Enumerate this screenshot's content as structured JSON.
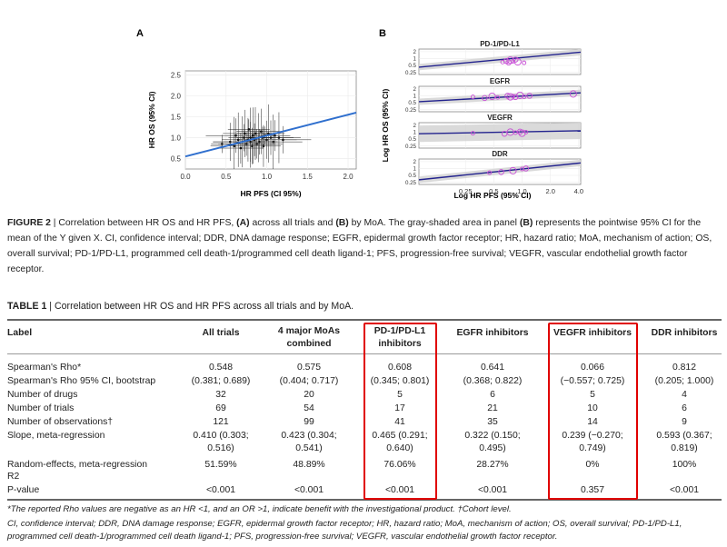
{
  "figure": {
    "panel_a": {
      "letter": "A",
      "x_label": "HR PFS (CI 95%)",
      "y_label": "HR OS (95% CI)",
      "x_ticks": [
        "0.0",
        "0.5",
        "1.0",
        "1.5",
        "2.0"
      ],
      "y_ticks": [
        "0.5",
        "1.0",
        "1.5",
        "2.0",
        "2.5"
      ]
    },
    "panel_b": {
      "letter": "B",
      "subpanels": [
        "PD-1/PD-L1",
        "EGFR",
        "VEGFR",
        "DDR"
      ],
      "y_ticks": [
        "2",
        "1",
        "0.5",
        "0.25"
      ],
      "x_ticks": [
        "0.25",
        "0.5",
        "1.0",
        "2.0",
        "4.0"
      ],
      "x_label": "Log HR PFS (95% CI)",
      "y_label": "Log HR OS (95% CI)"
    },
    "colors": {
      "line_a": "#2f6fce",
      "line_b": "#23238e",
      "points_b": "#c84fd6",
      "ci_band": "#d4d4d4"
    }
  },
  "chart_data": [
    {
      "type": "scatter",
      "title": "A",
      "xlabel": "HR PFS (CI 95%)",
      "ylabel": "HR OS (95% CI)",
      "xlim": [
        0.0,
        2.1
      ],
      "ylim": [
        0.25,
        2.6
      ],
      "error_bars": true,
      "points": [
        [
          0.45,
          0.85
        ],
        [
          0.55,
          0.9
        ],
        [
          0.6,
          0.8
        ],
        [
          0.62,
          1.05
        ],
        [
          0.65,
          0.95
        ],
        [
          0.68,
          0.75
        ],
        [
          0.7,
          0.9
        ],
        [
          0.72,
          1.0
        ],
        [
          0.73,
          1.1
        ],
        [
          0.75,
          0.85
        ],
        [
          0.77,
          0.95
        ],
        [
          0.78,
          1.2
        ],
        [
          0.8,
          0.9
        ],
        [
          0.8,
          1.0
        ],
        [
          0.82,
          0.8
        ],
        [
          0.83,
          1.05
        ],
        [
          0.85,
          0.95
        ],
        [
          0.86,
          1.1
        ],
        [
          0.88,
          0.85
        ],
        [
          0.9,
          1.0
        ],
        [
          0.91,
          0.9
        ],
        [
          0.93,
          1.15
        ],
        [
          0.95,
          1.0
        ],
        [
          0.96,
          0.8
        ],
        [
          0.98,
          1.05
        ],
        [
          1.0,
          0.95
        ],
        [
          1.02,
          1.1
        ],
        [
          1.05,
          1.0
        ],
        [
          1.08,
          0.9
        ],
        [
          1.1,
          1.05
        ],
        [
          1.15,
          1.0
        ],
        [
          1.2,
          0.95
        ]
      ],
      "fit_line": {
        "x": [
          0.0,
          2.1
        ],
        "y": [
          0.55,
          1.6
        ]
      }
    },
    {
      "type": "scatter",
      "title": "PD-1/PD-L1",
      "ylabel": "Log HR OS (95% CI)",
      "log_scale": true,
      "points": [
        [
          0.62,
          0.7
        ],
        [
          0.68,
          0.78
        ],
        [
          0.75,
          0.85
        ],
        [
          0.8,
          0.75
        ],
        [
          0.85,
          0.9
        ],
        [
          0.9,
          0.72
        ],
        [
          1.05,
          0.65
        ],
        [
          0.72,
          0.68
        ]
      ],
      "fit_line": {
        "x": [
          0.08,
          4.2
        ],
        "y": [
          0.42,
          1.9
        ]
      }
    },
    {
      "type": "scatter",
      "title": "EGFR",
      "log_scale": true,
      "points": [
        [
          0.3,
          0.9
        ],
        [
          0.4,
          0.8
        ],
        [
          0.48,
          0.95
        ],
        [
          0.55,
          0.85
        ],
        [
          0.7,
          1.0
        ],
        [
          0.75,
          0.9
        ],
        [
          0.8,
          0.95
        ],
        [
          0.85,
          0.88
        ],
        [
          0.95,
          1.05
        ],
        [
          1.05,
          0.9
        ],
        [
          1.2,
          1.0
        ],
        [
          3.5,
          1.2
        ]
      ],
      "fit_line": {
        "x": [
          0.08,
          4.2
        ],
        "y": [
          0.55,
          1.35
        ]
      }
    },
    {
      "type": "scatter",
      "title": "VEGFR",
      "log_scale": true,
      "points": [
        [
          0.3,
          0.9
        ],
        [
          0.65,
          0.85
        ],
        [
          0.75,
          1.0
        ],
        [
          0.85,
          0.95
        ],
        [
          0.95,
          1.05
        ],
        [
          1.0,
          0.9
        ],
        [
          1.1,
          1.0
        ]
      ],
      "fit_line": {
        "x": [
          0.08,
          4.2
        ],
        "y": [
          0.85,
          1.15
        ]
      }
    },
    {
      "type": "scatter",
      "title": "DDR",
      "xlabel": "Log HR PFS (95% CI)",
      "log_scale": true,
      "points": [
        [
          0.45,
          0.65
        ],
        [
          0.6,
          0.7
        ],
        [
          0.8,
          0.8
        ],
        [
          1.0,
          0.95
        ],
        [
          1.1,
          1.0
        ]
      ],
      "fit_line": {
        "x": [
          0.08,
          4.2
        ],
        "y": [
          0.32,
          1.75
        ]
      }
    }
  ],
  "caption": {
    "label": "FIGURE 2",
    "text_1": " | Correlation between HR OS and HR PFS, ",
    "a_bold": "(A)",
    "text_2": " across all trials and ",
    "b_bold": "(B)",
    "text_3": " by MoA. The gray-shaded area in panel ",
    "b_bold2": "(B)",
    "text_4": " represents the pointwise 95% CI for the mean of the Y given X. CI, confidence interval; DDR, DNA damage response; EGFR, epidermal growth factor receptor; HR, hazard ratio; MoA, mechanism of action; OS, overall survival; PD-1/PD-L1, programmed cell death-1/programmed cell death ligand-1; PFS, progression-free survival; VEGFR, vascular endothelial growth factor receptor."
  },
  "table": {
    "label": "TABLE 1",
    "title_text": " | Correlation between HR OS and HR PFS across all trials and by MoA.",
    "headers": [
      "Label",
      "All trials",
      "4 major MoAs combined",
      "PD-1/PD-L1 inhibitors",
      "EGFR inhibitors",
      "VEGFR inhibitors",
      "DDR inhibitors"
    ],
    "header_lines": {
      "moas_1": "4 major MoAs",
      "moas_2": "combined",
      "pd_1": "PD-1/PD-L1",
      "pd_2": "inhibitors"
    },
    "rows": [
      {
        "label": "Spearman's Rho*",
        "vals": [
          "0.548",
          "0.575",
          "0.608",
          "0.641",
          "0.066",
          "0.812"
        ]
      },
      {
        "label": "Spearman's Rho 95% CI, bootstrap",
        "vals": [
          "(0.381; 0.689)",
          "(0.404; 0.717)",
          "(0.345; 0.801)",
          "(0.368; 0.822)",
          "(−0.557; 0.725)",
          "(0.205; 1.000)"
        ]
      },
      {
        "label": "Number of drugs",
        "vals": [
          "32",
          "20",
          "5",
          "6",
          "5",
          "4"
        ]
      },
      {
        "label": "Number of trials",
        "vals": [
          "69",
          "54",
          "17",
          "21",
          "10",
          "6"
        ]
      },
      {
        "label": "Number of observations†",
        "vals": [
          "121",
          "99",
          "41",
          "35",
          "14",
          "9"
        ]
      },
      {
        "label": "Slope, meta-regression",
        "vals": [
          "0.410 (0.303;",
          "0.423 (0.304;",
          "0.465 (0.291;",
          "0.322 (0.150;",
          "0.239 (−0.270;",
          "0.593 (0.367;"
        ],
        "vals2": [
          "0.516)",
          "0.541)",
          "0.640)",
          "0.495)",
          "0.749)",
          "0.819)"
        ]
      },
      {
        "label": "Random-effects, meta-regression",
        "label2": "R2",
        "vals": [
          "51.59%",
          "48.89%",
          "76.06%",
          "28.27%",
          "0%",
          "100%"
        ]
      },
      {
        "label": "P-value",
        "vals": [
          "<0.001",
          "<0.001",
          "<0.001",
          "<0.001",
          "0.357",
          "<0.001"
        ]
      }
    ],
    "footnote_1": "*The reported Rho values are negative as an HR <1, and an OR >1, indicate benefit with the investigational product. †Cohort level.",
    "footnote_2": "CI, confidence interval; DDR, DNA damage response; EGFR, epidermal growth factor receptor; HR, hazard ratio; MoA, mechanism of action; OS, overall survival; PD-1/PD-L1, programmed cell death-1/programmed cell death ligand-1; PFS, progression-free survival; VEGFR, vascular endothelial growth factor receptor."
  }
}
